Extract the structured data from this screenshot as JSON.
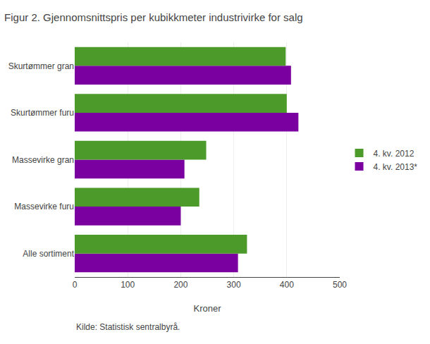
{
  "chart_data": {
    "type": "bar",
    "orientation": "horizontal",
    "title": "Figur 2. Gjennomsnittspris per kubikkmeter industrivirke for salg",
    "categories": [
      "Alle sortiment",
      "Massevirke furu",
      "Massevirke gran",
      "Skurtømmer furu",
      "Skurtømmer gran"
    ],
    "series": [
      {
        "name": "4. kv. 2012",
        "color": "#4c9a2a",
        "values": [
          325,
          235,
          248,
          400,
          398
        ]
      },
      {
        "name": "4. kv. 2013*",
        "color": "#7b00a0",
        "values": [
          308,
          200,
          207,
          422,
          408
        ]
      }
    ],
    "xlabel": "Kroner",
    "xlim": [
      0,
      500
    ],
    "xticks": [
      0,
      100,
      200,
      300,
      400,
      500
    ],
    "grid": true,
    "legend": "right",
    "annotations": [
      "Kilde: Statistisk sentralbyrå."
    ]
  }
}
